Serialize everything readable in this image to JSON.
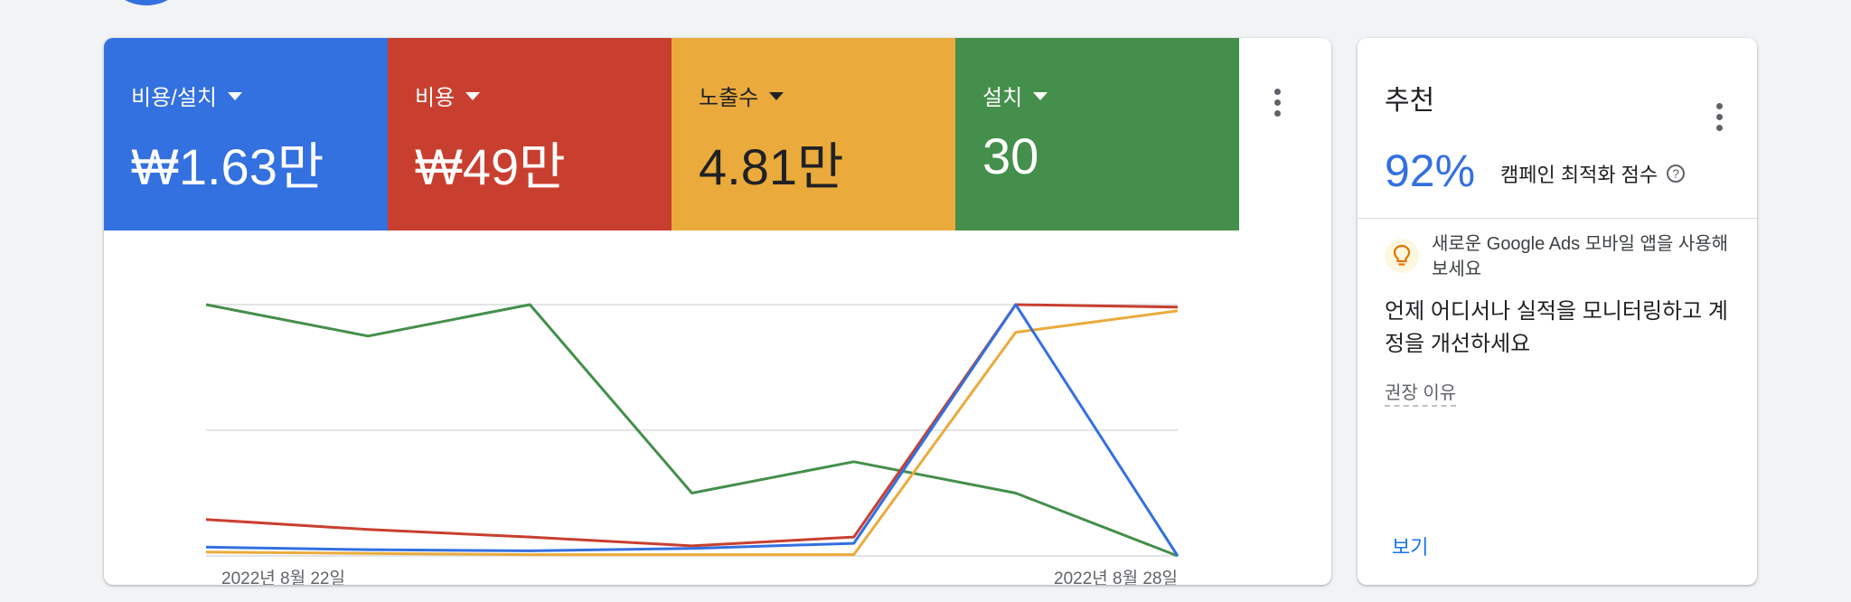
{
  "colors": {
    "blue": "#3370e0",
    "red": "#c93f2f",
    "yellow": "#eaab3c",
    "green": "#448f4b",
    "grid": "#dadce0"
  },
  "metrics": [
    {
      "label": "비용/설치",
      "value": "₩1.63만",
      "color": "#3370e0",
      "dark_text": false
    },
    {
      "label": "비용",
      "value": "₩49만",
      "color": "#c93f2f",
      "dark_text": false
    },
    {
      "label": "노출수",
      "value": "4.81만",
      "color": "#eaab3c",
      "dark_text": true
    },
    {
      "label": "설치",
      "value": "30",
      "color": "#448f4b",
      "dark_text": false
    }
  ],
  "chart_data": {
    "type": "line",
    "x": [
      "2022년 8월 22일",
      "2022년 8월 23일",
      "2022년 8월 24일",
      "2022년 8월 25일",
      "2022년 8월 26일",
      "2022년 8월 27일",
      "2022년 8월 28일"
    ],
    "x_tick_labels": [
      "2022년 8월 22일",
      "2022년 8월 28일"
    ],
    "series": [
      {
        "color": "#448f4b",
        "values": [
          1.0,
          0.875,
          1.0,
          0.25,
          0.375,
          0.25,
          0.0
        ]
      },
      {
        "color": "#c93f2f",
        "values": [
          0.145,
          0.105,
          0.075,
          0.04,
          0.075,
          1.0,
          0.99
        ]
      },
      {
        "color": "#eaab3c",
        "values": [
          0.015,
          0.01,
          0.005,
          0.005,
          0.005,
          0.89,
          0.975
        ]
      },
      {
        "color": "#3370e0",
        "values": [
          0.035,
          0.025,
          0.02,
          0.03,
          0.05,
          1.0,
          0.0
        ]
      }
    ],
    "ylim": [
      0,
      1
    ],
    "grid": true,
    "gridlines": 3
  },
  "recommendation": {
    "title": "추천",
    "score": "92%",
    "score_label": "캠페인 최적화 점수",
    "subtitle": "새로운 Google Ads 모바일 앱을 사용해 보세요",
    "headline": "언제 어디서나 실적을 모니터링하고 계정을 개선하세요",
    "reason_link": "권장 이유",
    "view_button": "보기"
  }
}
